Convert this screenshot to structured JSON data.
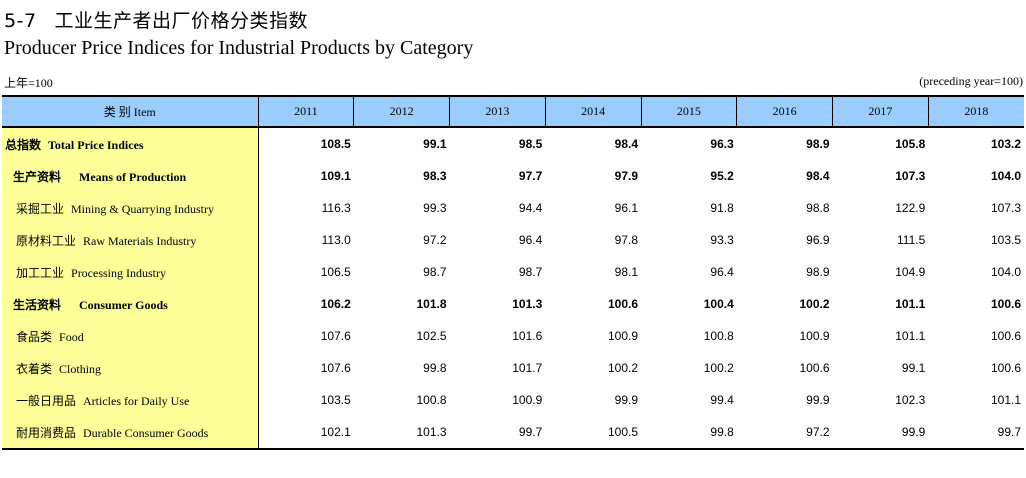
{
  "title": {
    "number": "5-7",
    "cn": "工业生产者出厂价格分类指数",
    "en": "Producer Price Indices for Industrial Products by Category"
  },
  "unit_left": "上年=100",
  "unit_right": "(preceding year=100)",
  "header": {
    "category": "类 别 Item",
    "years": [
      "2011",
      "2012",
      "2013",
      "2014",
      "2015",
      "2016",
      "2017",
      "2018"
    ]
  },
  "rows": [
    {
      "cn": "总指数",
      "en": "Total Price Indices",
      "level": "total",
      "bold": true,
      "values": [
        "108.5",
        "99.1",
        "98.5",
        "98.4",
        "96.3",
        "98.9",
        "105.8",
        "103.2"
      ]
    },
    {
      "cn": "生产资料",
      "en": "Means of Production",
      "level": "sub",
      "bold": true,
      "values": [
        "109.1",
        "98.3",
        "97.7",
        "97.9",
        "95.2",
        "98.4",
        "107.3",
        "104.0"
      ]
    },
    {
      "cn": "采掘工业",
      "en": "Mining & Quarrying Industry",
      "level": "item",
      "bold": false,
      "values": [
        "116.3",
        "99.3",
        "94.4",
        "96.1",
        "91.8",
        "98.8",
        "122.9",
        "107.3"
      ]
    },
    {
      "cn": "原材料工业",
      "en": "Raw Materials Industry",
      "level": "item",
      "bold": false,
      "values": [
        "113.0",
        "97.2",
        "96.4",
        "97.8",
        "93.3",
        "96.9",
        "111.5",
        "103.5"
      ]
    },
    {
      "cn": "加工工业",
      "en": "Processing Industry",
      "level": "item",
      "bold": false,
      "values": [
        "106.5",
        "98.7",
        "98.7",
        "98.1",
        "96.4",
        "98.9",
        "104.9",
        "104.0"
      ]
    },
    {
      "cn": "生活资料",
      "en": "Consumer Goods",
      "level": "sub",
      "bold": true,
      "values": [
        "106.2",
        "101.8",
        "101.3",
        "100.6",
        "100.4",
        "100.2",
        "101.1",
        "100.6"
      ]
    },
    {
      "cn": "食品类",
      "en": "Food",
      "level": "item",
      "bold": false,
      "values": [
        "107.6",
        "102.5",
        "101.6",
        "100.9",
        "100.8",
        "100.9",
        "101.1",
        "100.6"
      ]
    },
    {
      "cn": "衣着类",
      "en": "Clothing",
      "level": "item",
      "bold": false,
      "values": [
        "107.6",
        "99.8",
        "101.7",
        "100.2",
        "100.2",
        "100.6",
        "99.1",
        "100.6"
      ]
    },
    {
      "cn": "一般日用品",
      "en": "Articles for Daily Use",
      "level": "item",
      "bold": false,
      "values": [
        "103.5",
        "100.8",
        "100.9",
        "99.9",
        "99.4",
        "99.9",
        "102.3",
        "101.1"
      ]
    },
    {
      "cn": "耐用消费品",
      "en": "Durable Consumer Goods",
      "level": "item",
      "bold": false,
      "values": [
        "102.1",
        "101.3",
        "99.7",
        "100.5",
        "99.8",
        "97.2",
        "99.9",
        "99.7"
      ]
    }
  ]
}
